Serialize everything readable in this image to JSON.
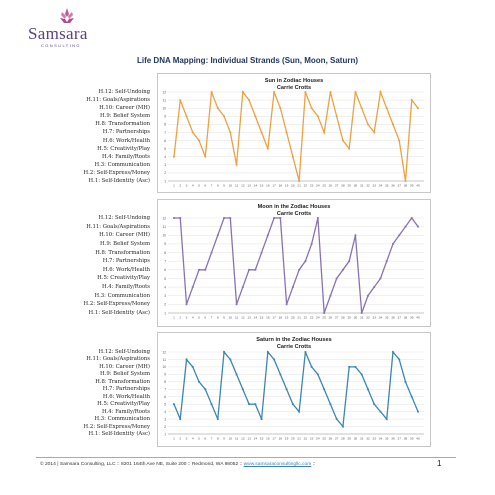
{
  "logo": {
    "word": "Samsara",
    "sub": "CONSULTING"
  },
  "page_title": "Life DNA Mapping: Individual Strands (Sun, Moon, Saturn)",
  "houses": [
    "H.12: Self-Undoing",
    "H.11: Goals/Aspirations",
    "H.10: Career (MH)",
    "H.9: Belief System",
    "H.8: Transformation",
    "H.7: Partnerships",
    "H.6: Work/Health",
    "H.5: Creativity/Play",
    "H.4: Family/Roots",
    "H.3: Communication",
    "H.2: Self-Express/Money",
    "H.1: Self-Identity (Asc)"
  ],
  "footer": {
    "text": "© 2014 | Samsara Consulting, LLC :: 8201 164th Ave NE, Suite 200 :: Redmond, WA 98052 :: ",
    "link": "www.samsaraconsultingllc.com",
    "tail": " ::",
    "page": "1"
  },
  "chart_data": [
    {
      "type": "line",
      "title": "Sun in Zodiac Houses",
      "subtitle": "Carrie Crotts",
      "color": "#f0a040",
      "x": [
        1,
        2,
        3,
        4,
        5,
        6,
        7,
        8,
        9,
        10,
        11,
        12,
        13,
        14,
        15,
        16,
        17,
        18,
        19,
        20,
        21,
        22,
        23,
        24,
        25,
        26,
        27,
        28,
        29,
        30,
        31,
        32,
        33,
        34,
        35,
        36,
        37,
        38,
        39,
        40
      ],
      "values": [
        4,
        11,
        9,
        7,
        6,
        4,
        12,
        10,
        9,
        7,
        3,
        12,
        11,
        9,
        7,
        5,
        12,
        10,
        7,
        4,
        1,
        12,
        10,
        9,
        7,
        12,
        9,
        6,
        5,
        12,
        10,
        8,
        7,
        12,
        10,
        8,
        6,
        1,
        11,
        10
      ],
      "ylim": [
        1,
        12
      ]
    },
    {
      "type": "line",
      "title": "Moon in the Zodiac Houses",
      "subtitle": "Carrie Crotts",
      "color": "#8872b5",
      "x": [
        1,
        2,
        3,
        4,
        5,
        6,
        7,
        8,
        9,
        10,
        11,
        12,
        13,
        14,
        15,
        16,
        17,
        18,
        19,
        20,
        21,
        22,
        23,
        24,
        25,
        26,
        27,
        28,
        29,
        30,
        31,
        32,
        33,
        34,
        35,
        36,
        37,
        38,
        39,
        40
      ],
      "values": [
        12,
        12,
        2,
        4,
        6,
        6,
        8,
        10,
        12,
        12,
        2,
        4,
        6,
        6,
        8,
        10,
        12,
        12,
        2,
        4,
        6,
        7,
        9,
        12,
        1,
        3,
        5,
        6,
        7,
        10,
        1,
        3,
        4,
        5,
        7,
        9,
        10,
        11,
        12,
        11
      ],
      "ylim": [
        1,
        12
      ]
    },
    {
      "type": "line",
      "title": "Saturn in the Zodiac Houses",
      "subtitle": "Carrie Crotts",
      "color": "#3b86b5",
      "x": [
        1,
        2,
        3,
        4,
        5,
        6,
        7,
        8,
        9,
        10,
        11,
        12,
        13,
        14,
        15,
        16,
        17,
        18,
        19,
        20,
        21,
        22,
        23,
        24,
        25,
        26,
        27,
        28,
        29,
        30,
        31,
        32,
        33,
        34,
        35,
        36,
        37,
        38,
        39,
        40
      ],
      "values": [
        5,
        3,
        11,
        10,
        8,
        7,
        5,
        3,
        12,
        11,
        9,
        7,
        5,
        5,
        3,
        12,
        11,
        9,
        7,
        5,
        4,
        12,
        10,
        9,
        7,
        5,
        3,
        2,
        10,
        10,
        9,
        7,
        5,
        4,
        3,
        12,
        11,
        8,
        6,
        4
      ],
      "ylim": [
        1,
        12
      ]
    }
  ]
}
